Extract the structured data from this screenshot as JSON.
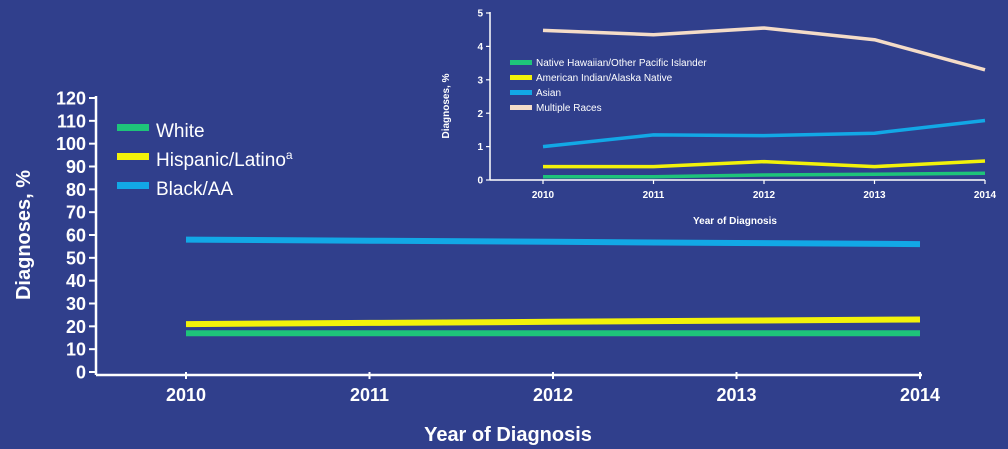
{
  "chart_data": [
    {
      "type": "line",
      "x": [
        2010,
        2011,
        2012,
        2013,
        2014
      ],
      "xlabel": "Year of Diagnosis",
      "ylabel": "Diagnoses, %",
      "ylim": [
        0,
        120
      ],
      "yticks": [
        0,
        10,
        20,
        30,
        40,
        50,
        60,
        70,
        80,
        90,
        100,
        110,
        120
      ],
      "legend_position": "top-left",
      "series": [
        {
          "name": "White",
          "color": "#1ec47a",
          "values": [
            17,
            17,
            17,
            17,
            17
          ]
        },
        {
          "name": "Hispanic/Latino",
          "superscript": "a",
          "color": "#f2f20a",
          "values": [
            21,
            21.5,
            22,
            22.5,
            23
          ]
        },
        {
          "name": "Black/AA",
          "color": "#12a8e6",
          "values": [
            58,
            57.5,
            57,
            56.5,
            56
          ]
        }
      ]
    },
    {
      "type": "line",
      "x": [
        2010,
        2011,
        2012,
        2013,
        2014
      ],
      "xlabel": "Year of Diagnosis",
      "ylabel": "Diagnoses, %",
      "ylim": [
        0,
        5
      ],
      "yticks": [
        0,
        1,
        2,
        3,
        4,
        5
      ],
      "legend_position": "top-left",
      "series": [
        {
          "name": "Native Hawaiian/Other Pacific Islander",
          "color": "#1ec47a",
          "values": [
            0.1,
            0.1,
            0.15,
            0.17,
            0.2
          ]
        },
        {
          "name": "American Indian/Alaska Native",
          "color": "#f2f20a",
          "values": [
            0.4,
            0.4,
            0.55,
            0.4,
            0.57
          ]
        },
        {
          "name": "Asian",
          "color": "#12a8e6",
          "values": [
            1.0,
            1.35,
            1.33,
            1.4,
            1.78
          ]
        },
        {
          "name": "Multiple Races",
          "color": "#f4dcc8",
          "values": [
            4.48,
            4.35,
            4.55,
            4.2,
            3.3
          ]
        }
      ]
    }
  ]
}
